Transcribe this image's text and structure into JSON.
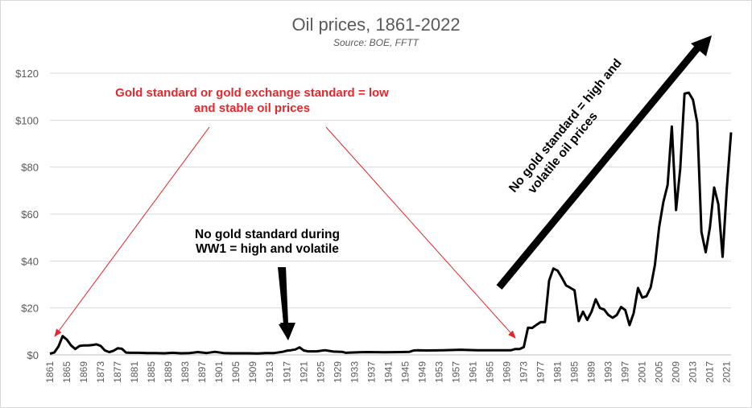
{
  "chart_data": {
    "type": "line",
    "title": "Oil prices, 1861-2022",
    "subtitle": "Source: BOE, FFTT",
    "xlabel": "",
    "ylabel": "",
    "ylim": [
      0,
      120
    ],
    "xlim": [
      1861,
      2022
    ],
    "y_ticks": [
      {
        "value": 0,
        "label": "$0"
      },
      {
        "value": 20,
        "label": "$20"
      },
      {
        "value": 40,
        "label": "$40"
      },
      {
        "value": 60,
        "label": "$60"
      },
      {
        "value": 80,
        "label": "$80"
      },
      {
        "value": 100,
        "label": "$100"
      },
      {
        "value": 120,
        "label": "$120"
      }
    ],
    "x_ticks": [
      1861,
      1865,
      1869,
      1873,
      1877,
      1881,
      1885,
      1889,
      1893,
      1897,
      1901,
      1905,
      1909,
      1913,
      1917,
      1921,
      1925,
      1929,
      1933,
      1937,
      1941,
      1945,
      1949,
      1953,
      1957,
      1961,
      1965,
      1969,
      1973,
      1977,
      1981,
      1985,
      1989,
      1993,
      1997,
      2001,
      2005,
      2009,
      2013,
      2017,
      2021
    ],
    "grid": "horizontal",
    "line_color": "#000000",
    "series": [
      {
        "x": [
          1861,
          1862,
          1863,
          1864,
          1865,
          1866,
          1867,
          1868,
          1869,
          1870,
          1871,
          1872,
          1873,
          1874,
          1875,
          1876,
          1877,
          1878,
          1879,
          1880,
          1882,
          1884,
          1886,
          1888,
          1890,
          1892,
          1894,
          1896,
          1898,
          1900,
          1902,
          1904,
          1906,
          1908,
          1910,
          1912,
          1914,
          1916,
          1917,
          1918,
          1919,
          1920,
          1921,
          1922,
          1924,
          1926,
          1928,
          1930,
          1931,
          1932,
          1934,
          1936,
          1940,
          1944,
          1946,
          1947,
          1948,
          1950,
          1954,
          1958,
          1962,
          1966,
          1970,
          1971,
          1972,
          1973,
          1974,
          1975,
          1976,
          1977,
          1978,
          1979,
          1980,
          1981,
          1982,
          1983,
          1984,
          1985,
          1986,
          1987,
          1988,
          1989,
          1990,
          1991,
          1992,
          1993,
          1994,
          1995,
          1996,
          1997,
          1998,
          1999,
          2000,
          2001,
          2002,
          2003,
          2004,
          2005,
          2006,
          2007,
          2008,
          2009,
          2010,
          2011,
          2012,
          2013,
          2014,
          2015,
          2016,
          2017,
          2018,
          2019,
          2020,
          2021,
          2022
        ],
        "values": [
          0.5,
          1.0,
          3.5,
          8.0,
          6.5,
          4.0,
          2.5,
          3.8,
          4.0,
          4.0,
          4.2,
          4.5,
          3.8,
          1.9,
          1.2,
          1.7,
          2.8,
          2.6,
          1.0,
          0.9,
          0.9,
          0.8,
          0.8,
          0.7,
          0.9,
          0.7,
          0.8,
          1.2,
          0.8,
          1.3,
          0.8,
          0.7,
          0.7,
          0.7,
          0.6,
          0.8,
          0.8,
          1.3,
          1.8,
          2.0,
          2.3,
          3.2,
          1.9,
          1.5,
          1.5,
          2.0,
          1.4,
          1.3,
          0.9,
          1.0,
          1.1,
          1.2,
          1.1,
          1.2,
          1.3,
          1.9,
          2.0,
          1.9,
          2.0,
          2.2,
          2.0,
          2.0,
          2.0,
          2.5,
          2.5,
          3.3,
          11.6,
          11.5,
          12.8,
          14.0,
          14.0,
          31.6,
          36.8,
          35.9,
          32.9,
          29.6,
          28.6,
          27.5,
          14.4,
          18.4,
          14.9,
          18.3,
          23.7,
          20.0,
          19.3,
          17.0,
          15.8,
          17.0,
          20.4,
          19.1,
          12.7,
          17.9,
          28.5,
          24.4,
          25.0,
          28.8,
          38.3,
          54.5,
          65.1,
          72.4,
          97.3,
          61.7,
          79.5,
          111.3,
          111.7,
          108.7,
          98.9,
          52.4,
          43.7,
          54.2,
          71.3,
          64.2,
          41.8,
          70.9,
          94.8
        ]
      }
    ]
  },
  "annotations": {
    "gold_standard_line1": "Gold standard or gold exchange standard = low",
    "gold_standard_line2": "and stable oil prices",
    "ww1_line1": "No gold standard during",
    "ww1_line2": "WW1 = high and volatile",
    "no_gold_line1": "No gold standard = high and",
    "no_gold_line2": "volatile oil prices",
    "red_color": "#e8262b"
  }
}
